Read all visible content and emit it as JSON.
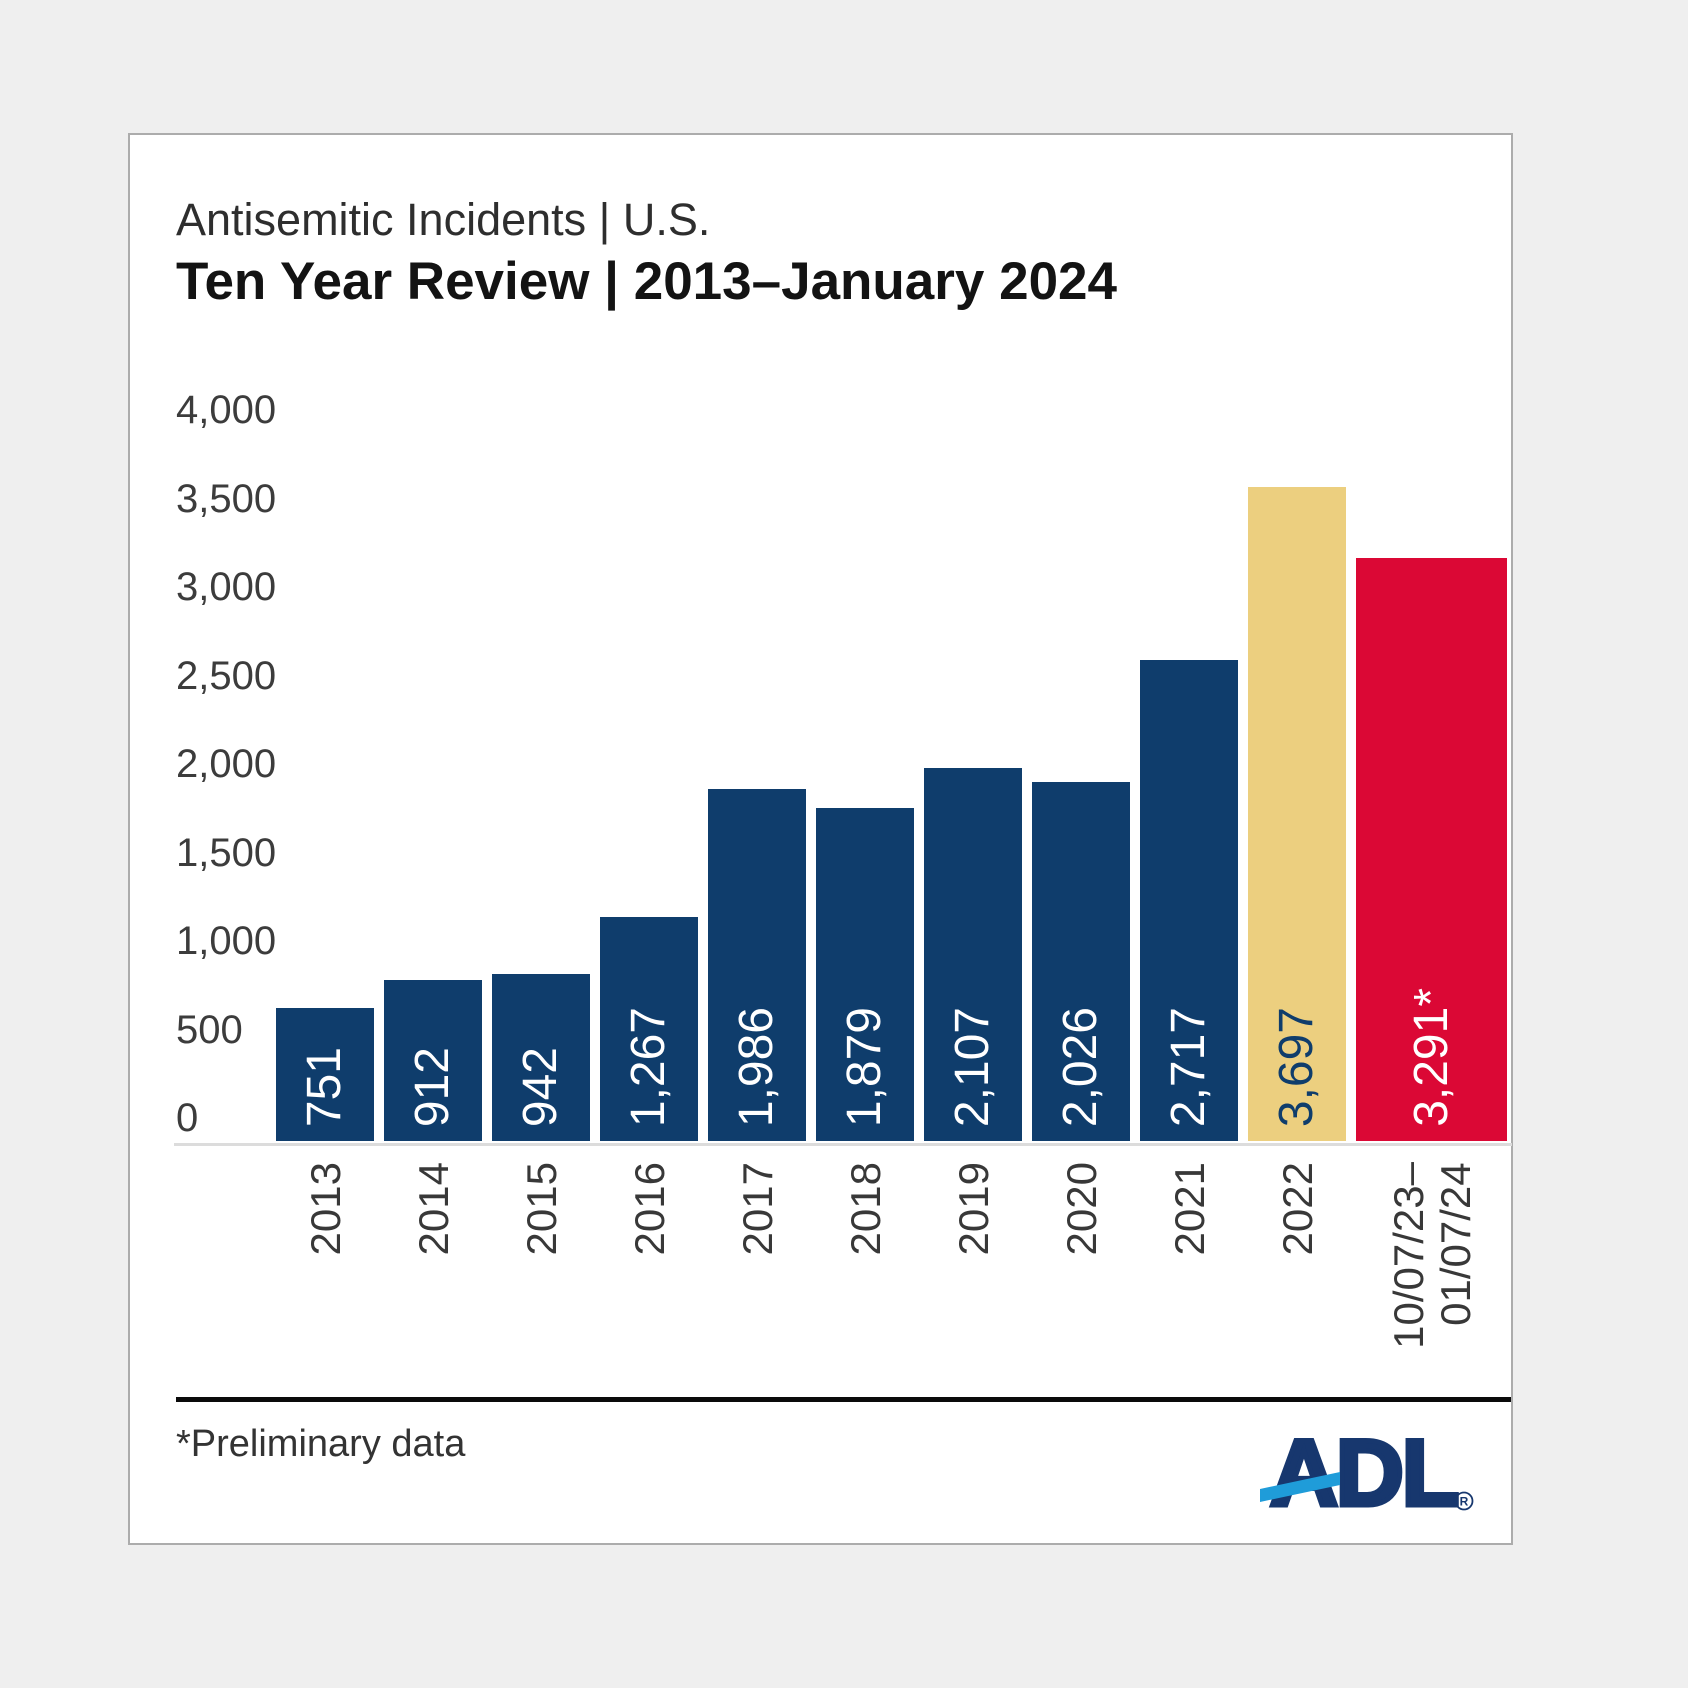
{
  "page": {
    "background": "#EFEFEF",
    "card_border": "#ACACAC"
  },
  "header": {
    "title": "Antisemitic Incidents | U.S.",
    "subtitle": "Ten Year Review | 2013–January 2024"
  },
  "chart_data": {
    "type": "bar",
    "title": "Antisemitic Incidents | U.S. — Ten Year Review | 2013–January 2024",
    "categories": [
      "2013",
      "2014",
      "2015",
      "2016",
      "2017",
      "2018",
      "2019",
      "2020",
      "2021",
      "2022",
      "10/07/23–\n01/07/24"
    ],
    "values": [
      751,
      912,
      942,
      1267,
      1986,
      1879,
      2107,
      2026,
      2717,
      3697,
      3291
    ],
    "bar_labels": [
      "751",
      "912",
      "942",
      "1,267",
      "1,986",
      "1,879",
      "2,107",
      "2,026",
      "2,717",
      "3,697",
      "3,291*"
    ],
    "bar_colors": [
      "#0F3D6C",
      "#0F3D6C",
      "#0F3D6C",
      "#0F3D6C",
      "#0F3D6C",
      "#0F3D6C",
      "#0F3D6C",
      "#0F3D6C",
      "#0F3D6C",
      "#ECCF7F",
      "#DB0835"
    ],
    "bar_label_colors": [
      "#FFFFFF",
      "#FFFFFF",
      "#FFFFFF",
      "#FFFFFF",
      "#FFFFFF",
      "#FFFFFF",
      "#FFFFFF",
      "#FFFFFF",
      "#FFFFFF",
      "#0F3D6C",
      "#FFFFFF"
    ],
    "y_ticks": [
      {
        "label": "0",
        "value": 0
      },
      {
        "label": "500",
        "value": 500
      },
      {
        "label": "1,000",
        "value": 1000
      },
      {
        "label": "1,500",
        "value": 1500
      },
      {
        "label": "2,000",
        "value": 2000
      },
      {
        "label": "2,500",
        "value": 2500
      },
      {
        "label": "3,000",
        "value": 3000
      },
      {
        "label": "3,500",
        "value": 3500
      },
      {
        "label": "4,000",
        "value": 4000
      }
    ],
    "ylim": [
      0,
      4000
    ],
    "grid": false,
    "legend_position": "none",
    "xlabel": "",
    "ylabel": "",
    "tick_color": "#3C3C3C",
    "note": "Final bar is wider than the others and shows preliminary data"
  },
  "footer": {
    "note": "*Preliminary data",
    "logo": {
      "text": "ADL",
      "registered": "R",
      "navy": "#17376E",
      "blue": "#1F9CD9"
    }
  }
}
